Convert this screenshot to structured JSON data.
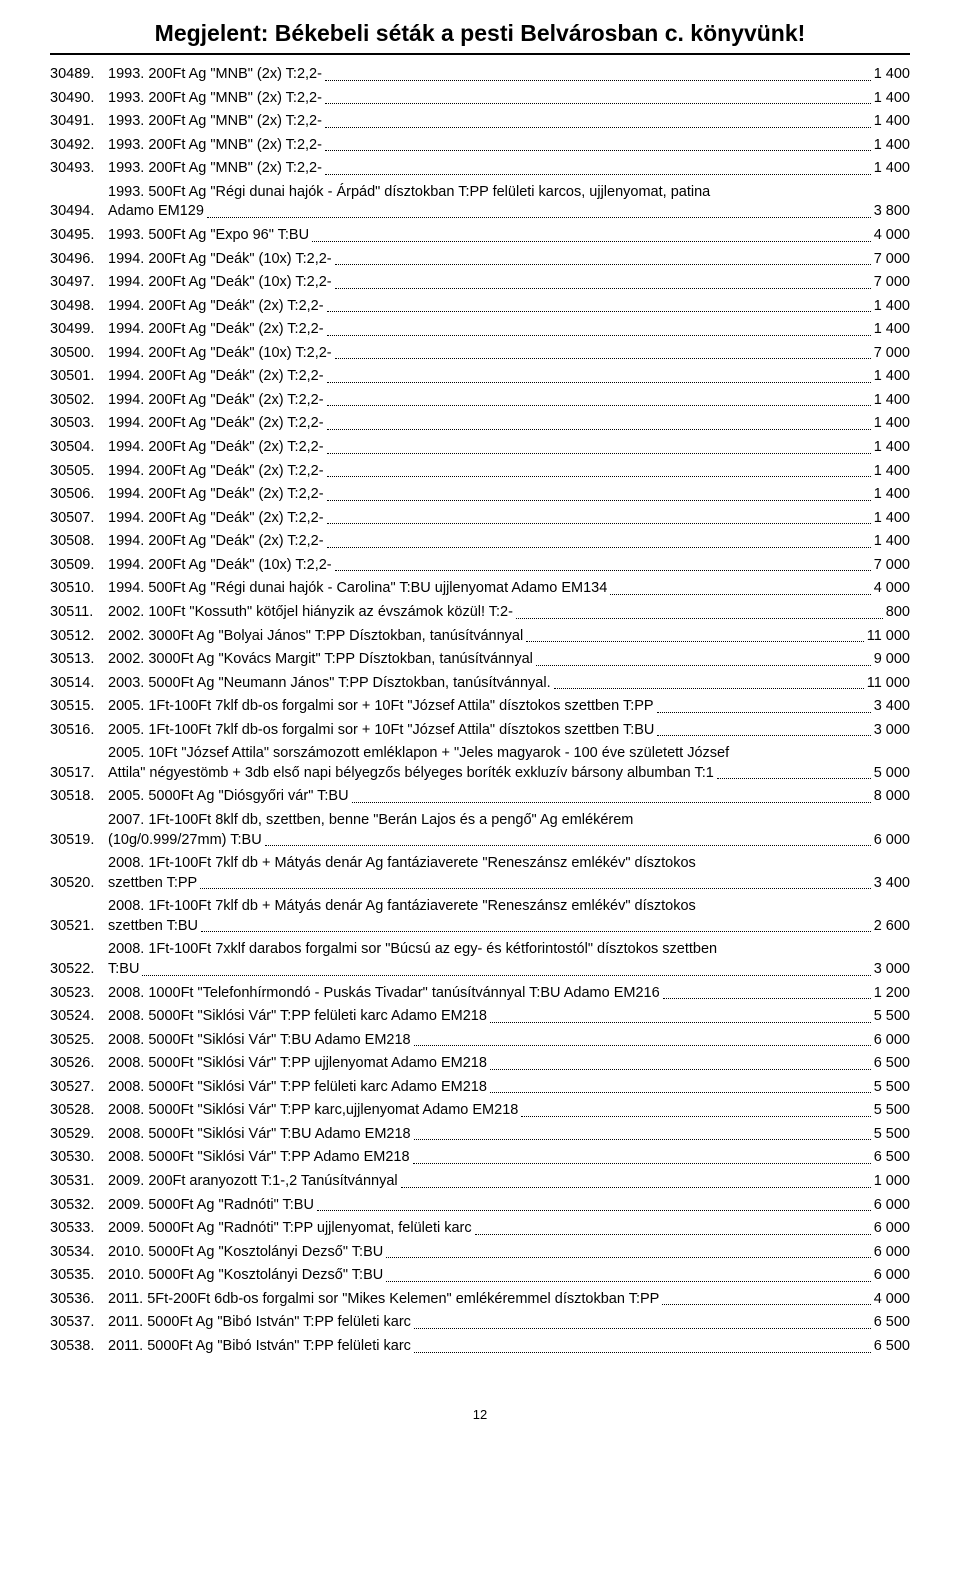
{
  "banner": "Megjelent: Békebeli séták a pesti Belvárosban c. könyvünk!",
  "page_number": "12",
  "colors": {
    "text": "#000000",
    "background": "#ffffff",
    "dots": "#000000",
    "rule": "#000000"
  },
  "typography": {
    "banner_fontsize": 23,
    "banner_weight": "bold",
    "body_fontsize": 14.5,
    "footer_fontsize": 13,
    "font_family": "Arial"
  },
  "entries": [
    {
      "num": "30489.",
      "desc": "1993. 200Ft Ag \"MNB\" (2x) T:2,2-",
      "price": "1 400"
    },
    {
      "num": "30490.",
      "desc": "1993. 200Ft Ag \"MNB\" (2x) T:2,2-",
      "price": "1 400"
    },
    {
      "num": "30491.",
      "desc": "1993. 200Ft Ag \"MNB\" (2x) T:2,2-",
      "price": "1 400"
    },
    {
      "num": "30492.",
      "desc": "1993. 200Ft Ag \"MNB\" (2x) T:2,2-",
      "price": "1 400"
    },
    {
      "num": "30493.",
      "desc": "1993. 200Ft Ag \"MNB\" (2x) T:2,2-",
      "price": "1 400"
    },
    {
      "num": "30494.",
      "multiline": true,
      "lines": [
        "1993. 500Ft Ag \"Régi dunai hajók - Árpád\" dísztokban T:PP felületi karcos, ujjlenyomat, patina"
      ],
      "last": "Adamo EM129",
      "price": "3 800"
    },
    {
      "num": "30495.",
      "desc": "1993. 500Ft Ag \"Expo 96\" T:BU",
      "price": "4 000"
    },
    {
      "num": "30496.",
      "desc": "1994. 200Ft Ag \"Deák\" (10x) T:2,2-",
      "price": "7 000"
    },
    {
      "num": "30497.",
      "desc": "1994. 200Ft Ag \"Deák\" (10x) T:2,2-",
      "price": "7 000"
    },
    {
      "num": "30498.",
      "desc": "1994. 200Ft Ag \"Deák\" (2x) T:2,2-",
      "price": "1 400"
    },
    {
      "num": "30499.",
      "desc": "1994. 200Ft Ag \"Deák\" (2x) T:2,2-",
      "price": "1 400"
    },
    {
      "num": "30500.",
      "desc": "1994. 200Ft Ag \"Deák\" (10x) T:2,2-",
      "price": "7 000"
    },
    {
      "num": "30501.",
      "desc": "1994. 200Ft Ag \"Deák\" (2x) T:2,2-",
      "price": "1 400"
    },
    {
      "num": "30502.",
      "desc": "1994. 200Ft Ag \"Deák\" (2x) T:2,2-",
      "price": "1 400"
    },
    {
      "num": "30503.",
      "desc": "1994. 200Ft Ag \"Deák\" (2x) T:2,2-",
      "price": "1 400"
    },
    {
      "num": "30504.",
      "desc": "1994. 200Ft Ag \"Deák\" (2x) T:2,2-",
      "price": "1 400"
    },
    {
      "num": "30505.",
      "desc": "1994. 200Ft Ag \"Deák\" (2x) T:2,2-",
      "price": "1 400"
    },
    {
      "num": "30506.",
      "desc": "1994. 200Ft Ag \"Deák\" (2x) T:2,2-",
      "price": "1 400"
    },
    {
      "num": "30507.",
      "desc": "1994. 200Ft Ag \"Deák\" (2x) T:2,2-",
      "price": "1 400"
    },
    {
      "num": "30508.",
      "desc": "1994. 200Ft Ag \"Deák\" (2x) T:2,2-",
      "price": "1 400"
    },
    {
      "num": "30509.",
      "desc": "1994. 200Ft Ag \"Deák\" (10x) T:2,2-",
      "price": "7 000"
    },
    {
      "num": "30510.",
      "desc": "1994. 500Ft Ag \"Régi dunai hajók - Carolina\" T:BU ujjlenyomat Adamo EM134",
      "price": "4 000"
    },
    {
      "num": "30511.",
      "desc": "2002. 100Ft \"Kossuth\" kötőjel hiányzik az évszámok közül! T:2-",
      "price": "800"
    },
    {
      "num": "30512.",
      "desc": "2002. 3000Ft Ag \"Bolyai János\" T:PP Dísztokban, tanúsítvánnyal",
      "price": "11 000"
    },
    {
      "num": "30513.",
      "desc": "2002. 3000Ft Ag \"Kovács Margit\" T:PP Dísztokban, tanúsítvánnyal",
      "price": "9 000"
    },
    {
      "num": "30514.",
      "desc": "2003. 5000Ft Ag \"Neumann János\" T:PP Dísztokban, tanúsítvánnyal.",
      "price": "11 000"
    },
    {
      "num": "30515.",
      "desc": "2005. 1Ft-100Ft 7klf db-os forgalmi sor + 10Ft \"József Attila\" dísztokos szettben T:PP",
      "price": "3 400"
    },
    {
      "num": "30516.",
      "desc": "2005. 1Ft-100Ft 7klf db-os forgalmi sor + 10Ft \"József Attila\" dísztokos szettben T:BU",
      "price": "3 000"
    },
    {
      "num": "30517.",
      "multiline": true,
      "lines": [
        "2005. 10Ft \"József Attila\" sorszámozott emléklapon + \"Jeles magyarok - 100 éve született József"
      ],
      "last": "Attila\" négyestömb + 3db első napi bélyegzős bélyeges boríték exkluzív bársony albumban T:1",
      "price": "5 000"
    },
    {
      "num": "30518.",
      "desc": "2005. 5000Ft Ag \"Diósgyőri vár\" T:BU",
      "price": "8 000"
    },
    {
      "num": "30519.",
      "multiline": true,
      "lines": [
        "2007. 1Ft-100Ft 8klf db, szettben, benne \"Berán Lajos és a pengő\" Ag emlékérem"
      ],
      "last": "(10g/0.999/27mm) T:BU",
      "price": "6 000"
    },
    {
      "num": "30520.",
      "multiline": true,
      "lines": [
        "2008. 1Ft-100Ft 7klf db + Mátyás denár Ag fantáziaverete \"Reneszánsz emlékév\" dísztokos"
      ],
      "last": "szettben T:PP",
      "price": "3 400"
    },
    {
      "num": "30521.",
      "multiline": true,
      "lines": [
        "2008. 1Ft-100Ft 7klf db + Mátyás denár Ag fantáziaverete \"Reneszánsz emlékév\" dísztokos"
      ],
      "last": "szettben T:BU",
      "price": "2 600"
    },
    {
      "num": "30522.",
      "multiline": true,
      "lines": [
        "2008. 1Ft-100Ft 7xklf darabos forgalmi sor \"Búcsú az egy- és kétforintostól\" dísztokos szettben"
      ],
      "last": "T:BU",
      "price": "3 000"
    },
    {
      "num": "30523.",
      "desc": "2008. 1000Ft \"Telefonhírmondó - Puskás Tivadar\" tanúsítvánnyal T:BU Adamo EM216",
      "price": "1 200"
    },
    {
      "num": "30524.",
      "desc": "2008. 5000Ft \"Siklósi Vár\" T:PP felületi karc Adamo EM218",
      "price": "5 500"
    },
    {
      "num": "30525.",
      "desc": "2008. 5000Ft \"Siklósi Vár\" T:BU Adamo EM218",
      "price": "6 000"
    },
    {
      "num": "30526.",
      "desc": "2008. 5000Ft \"Siklósi Vár\" T:PP ujjlenyomat Adamo EM218",
      "price": "6 500"
    },
    {
      "num": "30527.",
      "desc": "2008. 5000Ft \"Siklósi Vár\" T:PP felületi karc Adamo EM218",
      "price": "5 500"
    },
    {
      "num": "30528.",
      "desc": "2008. 5000Ft \"Siklósi Vár\" T:PP karc,ujjlenyomat Adamo EM218",
      "price": "5 500"
    },
    {
      "num": "30529.",
      "desc": "2008. 5000Ft \"Siklósi Vár\" T:BU Adamo EM218",
      "price": "5 500"
    },
    {
      "num": "30530.",
      "desc": "2008. 5000Ft \"Siklósi Vár\" T:PP Adamo EM218",
      "price": "6 500"
    },
    {
      "num": "30531.",
      "desc": "2009. 200Ft aranyozott T:1-,2 Tanúsítvánnyal",
      "price": "1 000"
    },
    {
      "num": "30532.",
      "desc": "2009. 5000Ft Ag \"Radnóti\" T:BU",
      "price": "6 000"
    },
    {
      "num": "30533.",
      "desc": "2009. 5000Ft Ag \"Radnóti\" T:PP ujjlenyomat, felületi karc",
      "price": "6 000"
    },
    {
      "num": "30534.",
      "desc": "2010. 5000Ft Ag \"Kosztolányi Dezső\" T:BU",
      "price": "6 000"
    },
    {
      "num": "30535.",
      "desc": "2010. 5000Ft Ag \"Kosztolányi Dezső\" T:BU",
      "price": "6 000"
    },
    {
      "num": "30536.",
      "desc": "2011. 5Ft-200Ft 6db-os forgalmi sor \"Mikes Kelemen\" emlékéremmel dísztokban T:PP",
      "price": "4 000"
    },
    {
      "num": "30537.",
      "desc": "2011. 5000Ft Ag \"Bibó István\" T:PP felületi karc",
      "price": "6 500"
    },
    {
      "num": "30538.",
      "desc": "2011. 5000Ft Ag \"Bibó István\" T:PP felületi karc",
      "price": "6 500"
    }
  ]
}
